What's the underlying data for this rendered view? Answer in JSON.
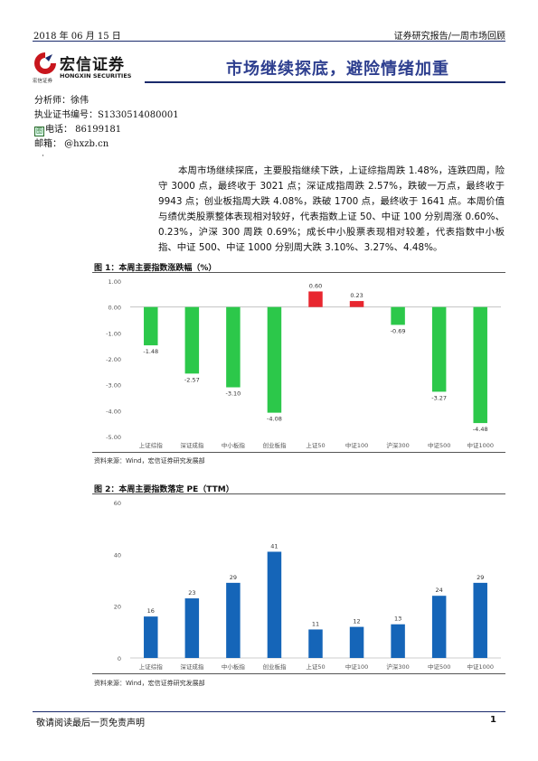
{
  "header": {
    "date": "2018 年 06 月 15 日",
    "report_type": "证券研究报告/一周市场回顾"
  },
  "logo": {
    "cn": "宏信证券",
    "en": "HONGXIN SECURITIES",
    "cn_small": "宏信证券"
  },
  "title": "市场继续探底，避险情绪加重",
  "analyst": {
    "name_line": "分析师：徐伟",
    "license_line": "执业证书编号：S1330514080001",
    "phone_line": "电话：  86199181",
    "email_line": "邮箱：  @hxzb.cn",
    "stamp_glyph": "图"
  },
  "bullet": "·",
  "summary": "本周市场继续探底，主要股指继续下跌，上证综指周跌 1.48%，连跌四周，险守 3000 点，最终收于 3021 点；深证成指周跌 2.57%，跌破一万点，最终收于 9943 点；创业板指周大跌 4.08%，跌破 1700 点，最终收于 1641 点。本周价值与绩优类股票整体表现相对较好，代表指数上证 50、中证 100 分别周涨 0.60%、0.23%，沪深 300 周跌 0.69%；成长中小股票表现相对较差，代表指数中小板指、中证 500、中证 1000 分别周大跌 3.10%、3.27%、4.48%。",
  "figures": [
    {
      "title": "图 1：本周主要指数涨跌幅（%）",
      "source": "资料来源：Wind，宏信证券研究发展部"
    },
    {
      "title": "图 2：本周主要指数落定 PE（TTM）",
      "source": "资料来源：Wind，宏信证券研究发展部"
    }
  ],
  "chart_data": [
    {
      "type": "bar",
      "title": "图 1：本周主要指数涨跌幅（%）",
      "categories": [
        "上证综指",
        "深证成指",
        "中小板指",
        "创业板指",
        "上证50",
        "中证100",
        "沪深300",
        "中证500",
        "中证1000"
      ],
      "values": [
        -1.48,
        -2.57,
        -3.1,
        -4.08,
        0.6,
        0.23,
        -0.69,
        -3.27,
        -4.48
      ],
      "value_labels": [
        "-1.48",
        "-2.57",
        "-3.10",
        "-4.08",
        "0.60",
        "0.23",
        "-0.69",
        "-3.27",
        "-4.48"
      ],
      "yticks": [
        "1.00",
        "0.00",
        "-1.00",
        "-2.00",
        "-3.00",
        "-4.00",
        "-5.00"
      ],
      "ylim": [
        -5,
        1
      ],
      "grid": false,
      "colors": {
        "positive": "#e8262f",
        "negative": "#2cc84a"
      }
    },
    {
      "type": "bar",
      "title": "图 2：本周主要指数落定 PE（TTM）",
      "categories": [
        "上证综指",
        "深证成指",
        "中小板指",
        "创业板指",
        "上证50",
        "中证100",
        "沪深300",
        "中证500",
        "中证1000"
      ],
      "values": [
        16,
        23,
        29,
        41,
        11,
        12,
        13,
        24,
        29
      ],
      "value_labels": [
        "16",
        "23",
        "29",
        "41",
        "11",
        "12",
        "13",
        "24",
        "29"
      ],
      "yticks": [
        "60",
        "40",
        "20",
        "0"
      ],
      "ylim": [
        0,
        60
      ],
      "grid": false,
      "colors": {
        "bar": "#1565b8"
      }
    }
  ],
  "footer": {
    "note": "敬请阅读最后一页免责声明",
    "page": "1"
  }
}
